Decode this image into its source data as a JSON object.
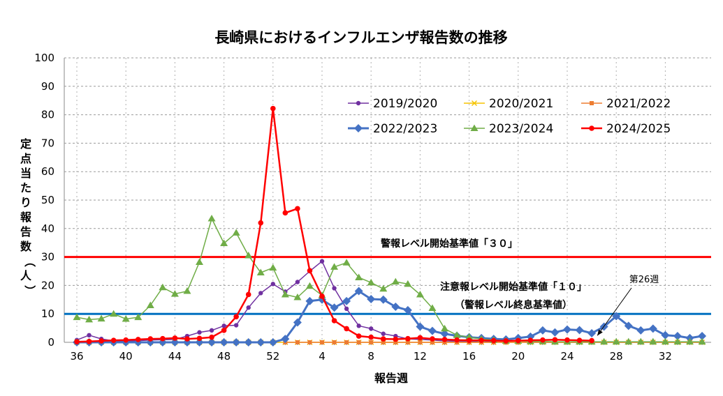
{
  "chart_data": {
    "type": "line",
    "title": "長崎県におけるインフルエンザ報告数の推移",
    "xlabel": "報告週",
    "ylabel": "定点当たり報告数（人）",
    "ylim": [
      0,
      100
    ],
    "yticks": [
      "0",
      "10",
      "20",
      "30",
      "40",
      "50",
      "60",
      "70",
      "80",
      "90",
      "100"
    ],
    "x_weeks": [
      36,
      37,
      38,
      39,
      40,
      41,
      42,
      43,
      44,
      45,
      46,
      47,
      48,
      49,
      50,
      51,
      52,
      1,
      2,
      3,
      4,
      5,
      6,
      7,
      8,
      9,
      10,
      11,
      12,
      13,
      14,
      15,
      16,
      17,
      18,
      19,
      20,
      21,
      22,
      23,
      24,
      25,
      26,
      27,
      28,
      29,
      30,
      31,
      32,
      33,
      34,
      35
    ],
    "xtick_labels": [
      "36",
      "40",
      "44",
      "48",
      "52",
      "4",
      "8",
      "12",
      "16",
      "20",
      "24",
      "28",
      "32"
    ],
    "grid": "horizontal",
    "legend_position": "top-right",
    "series": [
      {
        "name": "2019/2020",
        "color": "#7030a0",
        "marker": "circle",
        "values": [
          0.8,
          2.5,
          1.2,
          0.5,
          0.5,
          0.6,
          0.8,
          0.9,
          1.0,
          2.2,
          3.5,
          4.2,
          5.8,
          6.0,
          12.2,
          17.3,
          20.5,
          17.8,
          21.2,
          25.0,
          28.5,
          19.0,
          11.8,
          5.8,
          4.8,
          3.0,
          2.2,
          1.2,
          1.0,
          0.8,
          0.5,
          0.4,
          0.3,
          0.3,
          0.2
        ]
      },
      {
        "name": "2020/2021",
        "color": "#f5c400",
        "marker": "x",
        "values": [
          0,
          0,
          0,
          0,
          0,
          0,
          0,
          0,
          0,
          0,
          0,
          0,
          0,
          0,
          0,
          0,
          0,
          0,
          0,
          0,
          0,
          0,
          0,
          0,
          0,
          0,
          0,
          0,
          0,
          0,
          0,
          0,
          0,
          0,
          0,
          0,
          0,
          0,
          0,
          0,
          0,
          0,
          0,
          0,
          0,
          0,
          0,
          0,
          0,
          0,
          0,
          0
        ]
      },
      {
        "name": "2021/2022",
        "color": "#ed7d31",
        "marker": "square",
        "values": [
          null,
          null,
          null,
          null,
          null,
          null,
          null,
          null,
          null,
          null,
          null,
          null,
          null,
          null,
          null,
          null,
          null,
          0,
          0,
          0,
          0,
          0,
          0,
          0,
          0,
          0,
          0,
          0,
          0,
          0,
          0,
          0,
          0,
          0,
          0,
          0,
          0,
          0,
          0,
          0,
          0,
          0,
          0,
          0,
          0,
          0,
          0,
          0,
          0,
          0,
          0,
          0
        ]
      },
      {
        "name": "2022/2023",
        "color": "#4472c4",
        "marker": "diamond",
        "values": [
          0,
          0,
          0,
          0,
          0,
          0,
          0,
          0,
          0,
          0,
          0,
          0,
          0,
          0,
          0,
          0,
          0,
          1.2,
          7.0,
          14.5,
          15.0,
          12.2,
          14.5,
          18.0,
          15.2,
          15.0,
          12.5,
          11.3,
          5.5,
          4.0,
          3.0,
          2.3,
          1.8,
          1.5,
          1.2,
          1.0,
          1.5,
          2.0,
          4.2,
          3.5,
          4.5,
          4.3,
          3.2,
          5.5,
          9.2,
          5.8,
          4.2,
          4.8,
          2.5,
          2.2,
          1.5,
          2.2
        ]
      },
      {
        "name": "2023/2024",
        "color": "#70ad47",
        "marker": "triangle",
        "values": [
          8.8,
          8.0,
          8.3,
          10.0,
          8.2,
          8.8,
          13.0,
          19.3,
          17.0,
          18.0,
          28.2,
          43.5,
          34.8,
          38.5,
          30.5,
          24.5,
          26.2,
          16.8,
          15.8,
          19.8,
          16.5,
          26.5,
          28.0,
          22.8,
          21.0,
          18.8,
          21.3,
          20.5,
          16.8,
          12.0,
          4.8,
          2.5,
          1.8,
          1.2,
          0.8,
          0.5,
          0.5,
          0.3,
          0.3,
          0.2,
          0.2,
          0.2,
          0.2,
          0.2,
          0.2,
          0.2,
          0.2,
          0.2,
          0.2,
          0.2,
          0.2,
          0.2
        ]
      },
      {
        "name": "2024/2025",
        "color": "#ff0000",
        "marker": "circle",
        "values": [
          0.2,
          0.3,
          0.5,
          0.7,
          0.8,
          1.0,
          1.2,
          1.3,
          1.5,
          1.2,
          1.4,
          1.8,
          4.2,
          9.0,
          16.8,
          42.0,
          82.2,
          45.5,
          47.0,
          25.2,
          16.2,
          7.6,
          4.8,
          2.2,
          1.8,
          1.2,
          1.1,
          1.3,
          1.6,
          1.2,
          1.0,
          0.8,
          0.7,
          0.7,
          0.6,
          0.5,
          0.6,
          0.7,
          0.8,
          0.9,
          0.8,
          0.7,
          0.6
        ]
      }
    ],
    "reference_lines": [
      {
        "value": 30,
        "color": "#ff0000",
        "label": "警報レベル開始基準値「３０」"
      },
      {
        "value": 10,
        "color": "#0070c0",
        "label": "注意報レベル開始基準値「１０」",
        "sublabel": "（警報レベル終息基準値）"
      }
    ],
    "annotations": [
      {
        "text": "第26週",
        "week_index": 42
      }
    ]
  }
}
